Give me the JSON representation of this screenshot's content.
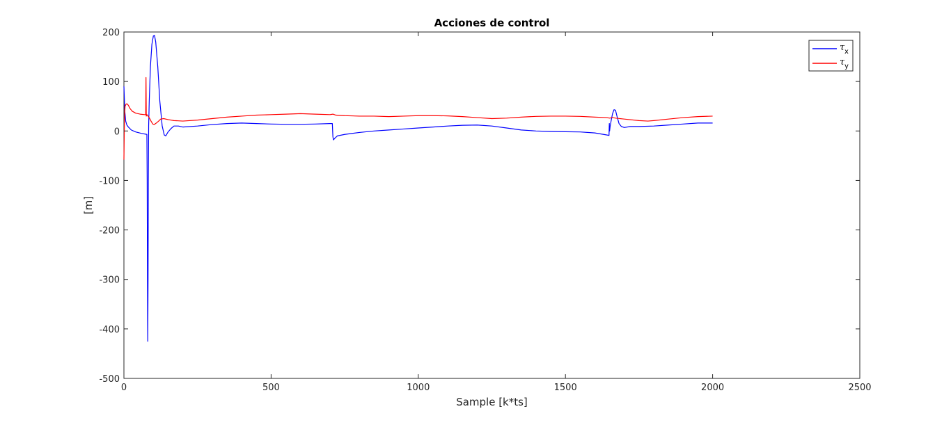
{
  "chart_data": {
    "type": "line",
    "title": "Acciones de control",
    "xlabel": "Sample [k*ts]",
    "ylabel": "[m]",
    "xlim": [
      0,
      2500
    ],
    "ylim": [
      -500,
      200
    ],
    "xticks": [
      0,
      500,
      1000,
      1500,
      2000,
      2500
    ],
    "yticks": [
      -500,
      -400,
      -300,
      -200,
      -100,
      0,
      100,
      200
    ],
    "xtick_labels": [
      "0",
      "500",
      "1000",
      "1500",
      "2000",
      "2500"
    ],
    "ytick_labels": [
      "-500",
      "-400",
      "-300",
      "-200",
      "-100",
      "0",
      "100",
      "200"
    ],
    "grid": false,
    "legend_position": "top-right",
    "series": [
      {
        "name": "τx",
        "legend_symbol": "τ",
        "legend_subscript": "x",
        "color": "#0000ff",
        "points": [
          [
            0,
            90
          ],
          [
            3,
            40
          ],
          [
            6,
            20
          ],
          [
            10,
            12
          ],
          [
            15,
            8
          ],
          [
            25,
            2
          ],
          [
            40,
            -2
          ],
          [
            60,
            -5
          ],
          [
            78,
            -7
          ],
          [
            79,
            -100
          ],
          [
            80,
            -300
          ],
          [
            81,
            -425
          ],
          [
            82,
            -300
          ],
          [
            83,
            -100
          ],
          [
            84,
            10
          ],
          [
            86,
            60
          ],
          [
            90,
            130
          ],
          [
            95,
            175
          ],
          [
            100,
            192
          ],
          [
            104,
            193
          ],
          [
            108,
            180
          ],
          [
            115,
            130
          ],
          [
            122,
            60
          ],
          [
            130,
            10
          ],
          [
            137,
            -8
          ],
          [
            142,
            -10
          ],
          [
            150,
            -2
          ],
          [
            160,
            5
          ],
          [
            170,
            10
          ],
          [
            185,
            10
          ],
          [
            200,
            8
          ],
          [
            250,
            10
          ],
          [
            300,
            13
          ],
          [
            350,
            15
          ],
          [
            400,
            16
          ],
          [
            450,
            15
          ],
          [
            500,
            14
          ],
          [
            550,
            13.5
          ],
          [
            600,
            13.5
          ],
          [
            650,
            14
          ],
          [
            700,
            15
          ],
          [
            708,
            15
          ],
          [
            710,
            -12
          ],
          [
            712,
            -18
          ],
          [
            716,
            -15
          ],
          [
            725,
            -10
          ],
          [
            750,
            -7
          ],
          [
            800,
            -3
          ],
          [
            850,
            0
          ],
          [
            900,
            2
          ],
          [
            950,
            4
          ],
          [
            1000,
            6
          ],
          [
            1050,
            8
          ],
          [
            1100,
            10
          ],
          [
            1150,
            11.5
          ],
          [
            1200,
            12
          ],
          [
            1250,
            10
          ],
          [
            1300,
            6
          ],
          [
            1350,
            2
          ],
          [
            1400,
            0
          ],
          [
            1450,
            -1
          ],
          [
            1500,
            -1.5
          ],
          [
            1550,
            -2
          ],
          [
            1600,
            -4
          ],
          [
            1640,
            -8
          ],
          [
            1648,
            -9
          ],
          [
            1649,
            15
          ],
          [
            1650,
            0
          ],
          [
            1652,
            10
          ],
          [
            1655,
            20
          ],
          [
            1660,
            35
          ],
          [
            1665,
            43
          ],
          [
            1670,
            42
          ],
          [
            1675,
            30
          ],
          [
            1682,
            15
          ],
          [
            1690,
            9
          ],
          [
            1700,
            7
          ],
          [
            1720,
            9
          ],
          [
            1750,
            9
          ],
          [
            1800,
            10
          ],
          [
            1850,
            12
          ],
          [
            1900,
            14
          ],
          [
            1950,
            16
          ],
          [
            2000,
            16
          ]
        ]
      },
      {
        "name": "τy",
        "legend_symbol": "τ",
        "legend_subscript": "y",
        "color": "#ff0000",
        "points": [
          [
            0,
            -58
          ],
          [
            1,
            -10
          ],
          [
            2,
            30
          ],
          [
            4,
            50
          ],
          [
            7,
            54
          ],
          [
            10,
            55
          ],
          [
            15,
            52
          ],
          [
            20,
            46
          ],
          [
            28,
            40
          ],
          [
            40,
            36
          ],
          [
            55,
            34
          ],
          [
            70,
            33
          ],
          [
            74,
            33
          ],
          [
            75,
            108
          ],
          [
            76,
            30
          ],
          [
            78,
            33
          ],
          [
            85,
            28
          ],
          [
            92,
            20
          ],
          [
            98,
            14
          ],
          [
            103,
            13
          ],
          [
            110,
            16
          ],
          [
            118,
            20
          ],
          [
            125,
            24
          ],
          [
            135,
            25
          ],
          [
            150,
            23
          ],
          [
            170,
            21
          ],
          [
            200,
            20
          ],
          [
            250,
            22
          ],
          [
            300,
            25
          ],
          [
            350,
            28
          ],
          [
            400,
            30
          ],
          [
            450,
            32
          ],
          [
            500,
            33
          ],
          [
            550,
            34
          ],
          [
            600,
            35
          ],
          [
            650,
            34
          ],
          [
            700,
            33
          ],
          [
            710,
            34
          ],
          [
            720,
            32
          ],
          [
            750,
            31
          ],
          [
            800,
            30
          ],
          [
            850,
            30
          ],
          [
            900,
            29
          ],
          [
            950,
            30
          ],
          [
            1000,
            31
          ],
          [
            1050,
            31
          ],
          [
            1100,
            30.5
          ],
          [
            1150,
            29
          ],
          [
            1200,
            27
          ],
          [
            1250,
            25
          ],
          [
            1300,
            26
          ],
          [
            1350,
            28
          ],
          [
            1400,
            29.5
          ],
          [
            1450,
            30
          ],
          [
            1500,
            30
          ],
          [
            1550,
            29.5
          ],
          [
            1600,
            28
          ],
          [
            1640,
            27
          ],
          [
            1650,
            26
          ],
          [
            1660,
            27
          ],
          [
            1670,
            26
          ],
          [
            1700,
            24
          ],
          [
            1750,
            21
          ],
          [
            1780,
            20
          ],
          [
            1800,
            21
          ],
          [
            1850,
            24
          ],
          [
            1900,
            27
          ],
          [
            1950,
            29
          ],
          [
            2000,
            30
          ]
        ]
      }
    ]
  }
}
